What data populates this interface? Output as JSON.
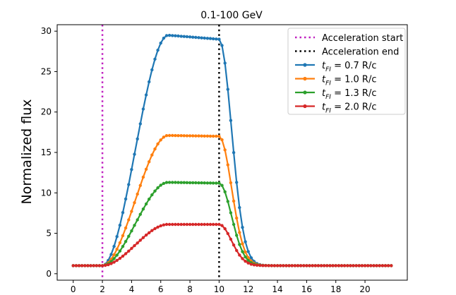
{
  "chart_data": {
    "type": "line",
    "title": "0.1-100 GeV",
    "xlabel": "",
    "ylabel": "Normalized flux",
    "xlim": [
      -1.1,
      22.9
    ],
    "ylim": [
      -0.8,
      30.8
    ],
    "xticks": [
      0,
      2,
      4,
      6,
      8,
      10,
      12,
      14,
      16,
      18,
      20
    ],
    "yticks": [
      0,
      5,
      10,
      15,
      20,
      25,
      30
    ],
    "grid": false,
    "legend_position": "top-right",
    "vlines": [
      {
        "name": "Acceleration start",
        "x": 2,
        "color": "#c020c0",
        "style": "dotted"
      },
      {
        "name": "Acceleration end",
        "x": 10,
        "color": "#000000",
        "style": "dotted"
      }
    ],
    "series_shape": {
      "baseline": 1.0,
      "rise_start": 2.0,
      "rise_time": 4.5,
      "decay_start": 10.0,
      "decay_time": 1.2,
      "x_min": 0,
      "x_max": 21.8,
      "x_step": 0.2
    },
    "series": [
      {
        "name": "0.7",
        "label_prefix": "t",
        "label_sub": "FI",
        "label_suffix": " = 0.7 R/c",
        "color": "#1f77b4",
        "peak": 29.5,
        "plateau_end": 29.0
      },
      {
        "name": "1.0",
        "label_prefix": "t",
        "label_sub": "FI",
        "label_suffix": " = 1.0 R/c",
        "color": "#ff7f0e",
        "peak": 17.1,
        "plateau_end": 17.0
      },
      {
        "name": "1.3",
        "label_prefix": "t",
        "label_sub": "FI",
        "label_suffix": " = 1.3 R/c",
        "color": "#2ca02c",
        "peak": 11.3,
        "plateau_end": 11.2
      },
      {
        "name": "2.0",
        "label_prefix": "t",
        "label_sub": "FI",
        "label_suffix": " = 2.0 R/c",
        "color": "#d62728",
        "peak": 6.1,
        "plateau_end": 6.1
      }
    ]
  }
}
